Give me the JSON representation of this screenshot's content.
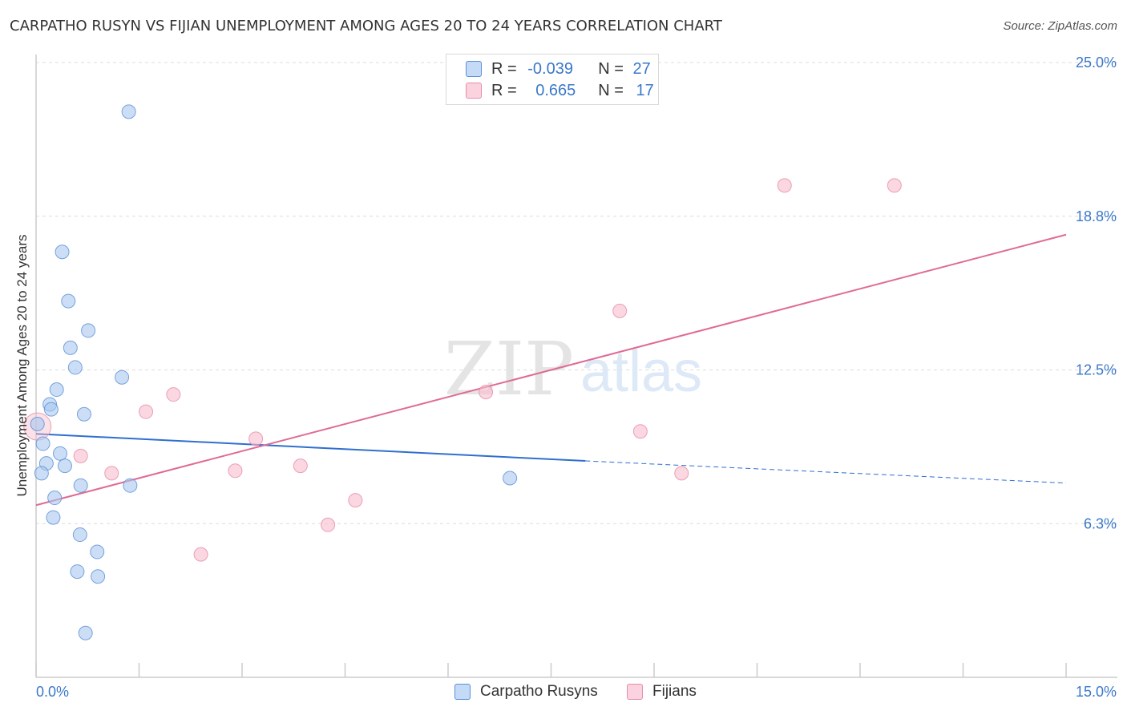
{
  "title": "CARPATHO RUSYN VS FIJIAN UNEMPLOYMENT AMONG AGES 20 TO 24 YEARS CORRELATION CHART",
  "source": "Source: ZipAtlas.com",
  "watermark": {
    "zip": "ZIP",
    "atlas": "atlas"
  },
  "legend": {
    "rows": [
      {
        "r_label": "R = ",
        "r_value": "-0.039",
        "n_label": "N = ",
        "n_value": "27",
        "color": "#a8c8f0"
      },
      {
        "r_label": "R = ",
        "r_value": "0.665",
        "n_label": "N = ",
        "n_value": "17",
        "color": "#f6bccd"
      }
    ]
  },
  "chart_data": {
    "type": "scatter",
    "title": "CARPATHO RUSYN VS FIJIAN UNEMPLOYMENT AMONG AGES 20 TO 24 YEARS CORRELATION CHART",
    "xlabel": "",
    "ylabel": "Unemployment Among Ages 20 to 24 years",
    "xlim": [
      0,
      15
    ],
    "ylim": [
      0,
      25
    ],
    "x_tick_labels": [
      "0.0%",
      "15.0%"
    ],
    "y_tick_labels": [
      "6.3%",
      "12.5%",
      "18.8%",
      "25.0%"
    ],
    "y_ticks": [
      6.25,
      12.5,
      18.75,
      25.0
    ],
    "grid": true,
    "series": [
      {
        "name": "Carpatho Rusyns",
        "color": "#a8c8f0",
        "edge": "#5a8fd6",
        "line_color": "#2f6fcf",
        "points": [
          [
            1.35,
            23.0
          ],
          [
            0.38,
            17.3
          ],
          [
            0.47,
            15.3
          ],
          [
            0.76,
            14.1
          ],
          [
            0.5,
            13.4
          ],
          [
            0.57,
            12.6
          ],
          [
            1.25,
            12.2
          ],
          [
            0.3,
            11.7
          ],
          [
            0.2,
            11.1
          ],
          [
            0.22,
            10.9
          ],
          [
            0.7,
            10.7
          ],
          [
            0.02,
            10.3
          ],
          [
            0.1,
            9.5
          ],
          [
            0.35,
            9.1
          ],
          [
            0.15,
            8.7
          ],
          [
            0.42,
            8.6
          ],
          [
            0.08,
            8.3
          ],
          [
            0.65,
            7.8
          ],
          [
            1.37,
            7.8
          ],
          [
            0.27,
            7.3
          ],
          [
            0.25,
            6.5
          ],
          [
            0.64,
            5.8
          ],
          [
            0.89,
            5.1
          ],
          [
            0.6,
            4.3
          ],
          [
            0.9,
            4.1
          ],
          [
            0.72,
            1.8
          ],
          [
            6.9,
            8.1
          ]
        ],
        "trend": {
          "x_start": 0.0,
          "y_start": 9.9,
          "x_solid_end": 8.0,
          "y_solid_end": 8.8,
          "x_end": 15.0,
          "y_end": 7.9
        }
      },
      {
        "name": "Fijians",
        "color": "#f6bccd",
        "edge": "#e88ba8",
        "line_color": "#e06a93",
        "points": [
          [
            0.02,
            10.2
          ],
          [
            0.65,
            9.0
          ],
          [
            1.1,
            8.3
          ],
          [
            1.6,
            10.8
          ],
          [
            2.0,
            11.5
          ],
          [
            2.4,
            5.0
          ],
          [
            2.9,
            8.4
          ],
          [
            3.2,
            9.7
          ],
          [
            3.85,
            8.6
          ],
          [
            4.25,
            6.2
          ],
          [
            4.65,
            7.2
          ],
          [
            6.55,
            11.6
          ],
          [
            8.5,
            14.9
          ],
          [
            8.8,
            10.0
          ],
          [
            9.4,
            8.3
          ],
          [
            10.9,
            20.0
          ],
          [
            12.5,
            20.0
          ]
        ],
        "trend": {
          "x_start": 0.0,
          "y_start": 7.0,
          "x_end": 15.0,
          "y_end": 18.0
        }
      }
    ]
  },
  "bottom_legend": {
    "items": [
      {
        "label": "Carpatho Rusyns",
        "color": "#a8c8f0",
        "edge": "#5a8fd6"
      },
      {
        "label": "Fijians",
        "color": "#f6bccd",
        "edge": "#e88ba8"
      }
    ]
  }
}
